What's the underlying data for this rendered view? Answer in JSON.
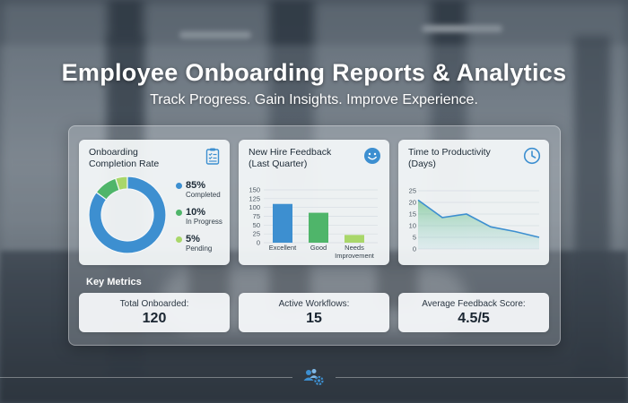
{
  "header": {
    "title": "Employee Onboarding Reports & Analytics",
    "subtitle": "Track Progress. Gain Insights. Improve Experience."
  },
  "cards": {
    "completion": {
      "title_line1": "Onboarding",
      "title_line2": "Completion Rate",
      "icon": "clipboard-checklist-icon",
      "legend": [
        {
          "pct": "85%",
          "label": "Completed",
          "color": "#3d8fd0"
        },
        {
          "pct": "10%",
          "label": "In Progress",
          "color": "#4fb56a"
        },
        {
          "pct": "5%",
          "label": "Pending",
          "color": "#a9d76a"
        }
      ]
    },
    "feedback": {
      "title_line1": "New Hire Feedback",
      "title_line2": "(Last Quarter)",
      "icon": "smiley-face-icon",
      "y_ticks": [
        "150",
        "125",
        "100",
        "75",
        "50",
        "25",
        "0"
      ],
      "categories": [
        "Excellent",
        "Good",
        "Needs",
        "Improvement"
      ]
    },
    "productivity": {
      "title_line1": "Time to Productivity",
      "title_line2": "(Days)",
      "icon": "clock-icon",
      "y_ticks": [
        "25",
        "20",
        "15",
        "10",
        "5",
        "0"
      ]
    }
  },
  "chart_data": [
    {
      "type": "pie",
      "categories": [
        "Completed",
        "In Progress",
        "Pending"
      ],
      "values": [
        85,
        10,
        5
      ],
      "colors": [
        "#3d8fd0",
        "#4fb56a",
        "#a9d76a"
      ],
      "title": "Onboarding Completion Rate",
      "donut": true
    },
    {
      "type": "bar",
      "categories": [
        "Excellent",
        "Good",
        "Needs Improvement"
      ],
      "values": [
        110,
        85,
        22
      ],
      "colors": [
        "#3d8fd0",
        "#4fb56a",
        "#a9d76a"
      ],
      "title": "New Hire Feedback (Last Quarter)",
      "ylim": [
        0,
        150
      ],
      "grid": true
    },
    {
      "type": "area",
      "x": [
        1,
        2,
        3,
        4,
        5,
        6
      ],
      "values": [
        21,
        13.5,
        15,
        9.5,
        7.5,
        5
      ],
      "color": "#3d8fd0",
      "title": "Time to Productivity (Days)",
      "ylim": [
        0,
        25
      ],
      "grid": true
    }
  ],
  "metrics": {
    "section_title": "Key Metrics",
    "items": [
      {
        "label": "Total Onboarded:",
        "value": "120"
      },
      {
        "label": "Active Workflows:",
        "value": "15"
      },
      {
        "label": "Average Feedback Score:",
        "value": "4.5/5"
      }
    ]
  },
  "footer": {
    "icon": "team-settings-icon"
  }
}
